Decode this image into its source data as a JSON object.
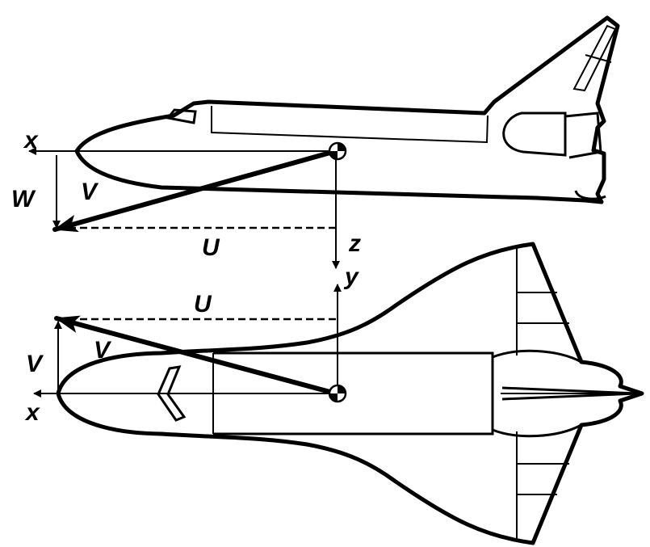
{
  "labels": {
    "side": {
      "x": "x",
      "w": "W",
      "v": "V",
      "u": "U",
      "z": "z"
    },
    "top": {
      "y": "y",
      "u": "U",
      "v_left": "V",
      "v_diag": "V",
      "x": "x"
    }
  }
}
